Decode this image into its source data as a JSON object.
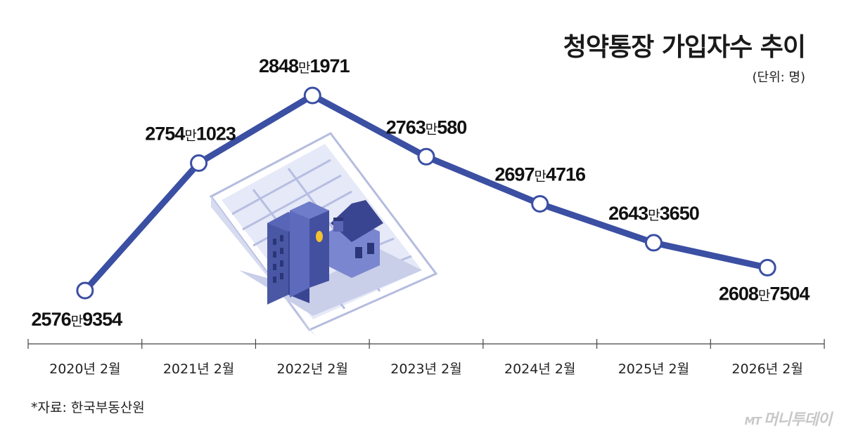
{
  "chart_data": {
    "type": "line",
    "title": "청약통장 가입자수 추이",
    "unit_label": "(단위: 명)",
    "categories": [
      "2020년 2월",
      "2021년 2월",
      "2022년 2월",
      "2023년 2월",
      "2024년 2월",
      "2025년 2월",
      "2026년 2월"
    ],
    "series": [
      {
        "values": [
          25769354,
          27541023,
          28481971,
          27630580,
          26974716,
          26433650,
          26087504
        ],
        "labels": [
          {
            "big1": "2576",
            "small": "만",
            "big2": "9354"
          },
          {
            "big1": "2754",
            "small": "만",
            "big2": "1023"
          },
          {
            "big1": "2848",
            "small": "만",
            "big2": "1971"
          },
          {
            "big1": "2763",
            "small": "만",
            "big2": "580"
          },
          {
            "big1": "2697",
            "small": "만",
            "big2": "4716"
          },
          {
            "big1": "2643",
            "small": "만",
            "big2": "3650"
          },
          {
            "big1": "2608",
            "small": "만",
            "big2": "7504"
          }
        ]
      }
    ],
    "grid": false,
    "line_color": "#3b4fa3"
  },
  "source": "*자료: 한국부동산원",
  "brand": {
    "mark": "MT",
    "name": "머니투데이"
  }
}
